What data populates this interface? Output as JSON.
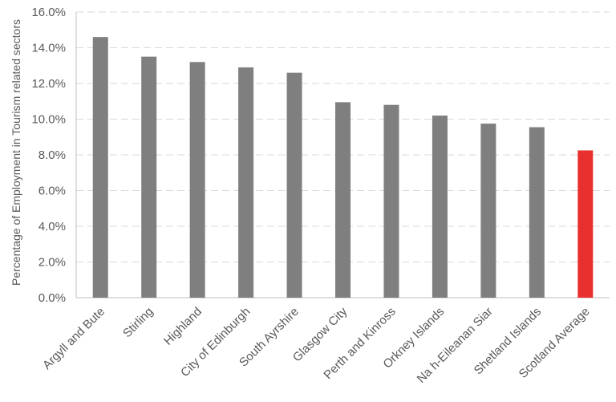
{
  "chart_data": {
    "type": "bar",
    "title": "",
    "xlabel": "",
    "ylabel": "Percentage of Employment in Tourism related sectors",
    "ylim": [
      0,
      16
    ],
    "y_ticks": [
      "0.0%",
      "2.0%",
      "4.0%",
      "6.0%",
      "8.0%",
      "10.0%",
      "12.0%",
      "14.0%",
      "16.0%"
    ],
    "grid": true,
    "legend": "none",
    "categories": [
      "Argyll and Bute",
      "Stirling",
      "Highland",
      "City of Edinburgh",
      "South Ayrshire",
      "Glasgow City",
      "Perth and Kinross",
      "Orkney Islands",
      "Na h-Eileanan Siar",
      "Shetland Islands",
      "Scotland Average"
    ],
    "values": [
      14.6,
      13.5,
      13.2,
      12.9,
      12.6,
      10.95,
      10.8,
      10.2,
      9.75,
      9.55,
      8.25
    ],
    "colors": {
      "bar": "#7f7f7f",
      "highlight": "#e8312f",
      "grid": "#d9d9d9",
      "axis": "#bfbfbf",
      "text": "#595959"
    },
    "highlight_category": "Scotland Average"
  }
}
